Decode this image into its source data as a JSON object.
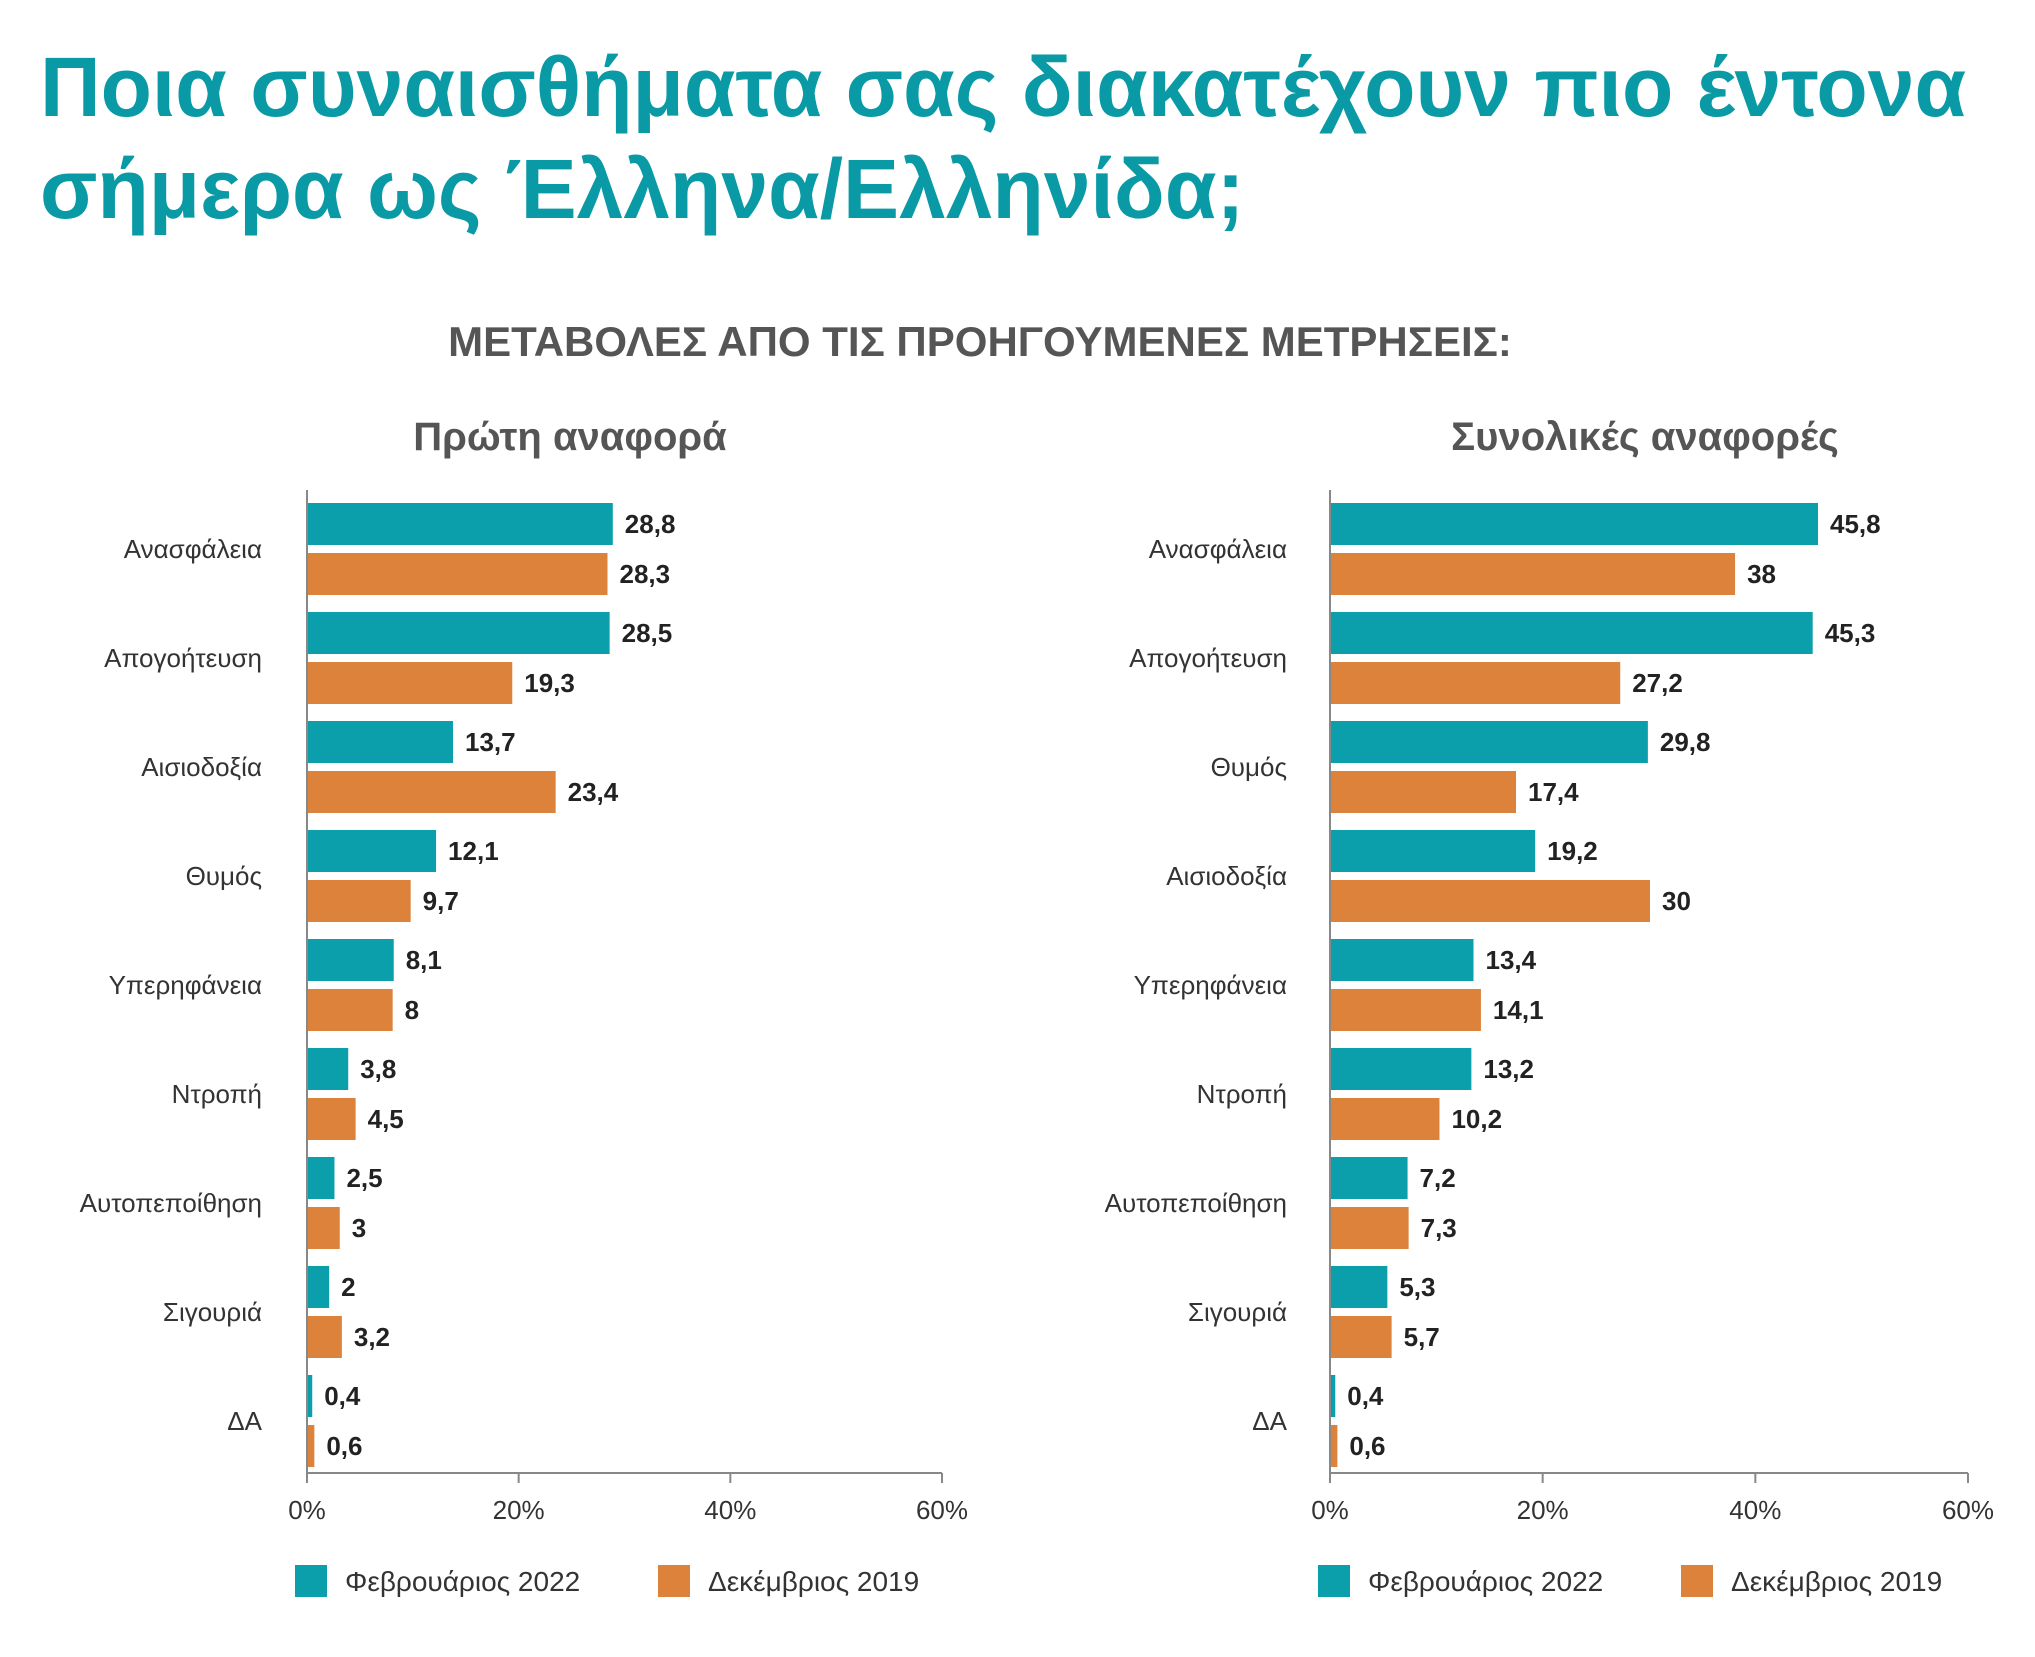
{
  "header": {
    "title": "Ποια συναισθήματα σας διακατέχουν πιο έντονα σήμερα ως Έλληνα/Ελληνίδα;",
    "subtitle": "ΜΕΤΑΒΟΛΕΣ ΑΠΟ ΤΙΣ ΠΡΟΗΓΟΥΜΕΝΕΣ ΜΕΤΡΗΣΕΙΣ:"
  },
  "colors": {
    "teal": "#0a9fab",
    "orange": "#dc823b",
    "axis": "#888888"
  },
  "chart_data": [
    {
      "type": "bar",
      "orientation": "horizontal",
      "title": "Πρώτη αναφορά",
      "categories": [
        "Ανασφάλεια",
        "Απογοήτευση",
        "Αισιοδοξία",
        "Θυμός",
        "Υπερηφάνεια",
        "Ντροπή",
        "Αυτοπεποίθηση",
        "Σιγουριά",
        "ΔΑ"
      ],
      "series": [
        {
          "name": "Φεβρουάριος 2022",
          "color": "#0a9fab",
          "values": [
            28.8,
            28.5,
            13.7,
            12.1,
            8.1,
            3.8,
            2.5,
            2,
            0.4
          ],
          "labels": [
            "28,8",
            "28,5",
            "13,7",
            "12,1",
            "8,1",
            "3,8",
            "2,5",
            "2",
            "0,4"
          ]
        },
        {
          "name": "Δεκέμβριος 2019",
          "color": "#dc823b",
          "values": [
            28.3,
            19.3,
            23.4,
            9.7,
            8,
            4.5,
            3,
            3.2,
            0.6
          ],
          "labels": [
            "28,3",
            "19,3",
            "23,4",
            "9,7",
            "8",
            "4,5",
            "3",
            "3,2",
            "0,6"
          ]
        }
      ],
      "xlim": [
        0,
        60
      ],
      "ticks": [
        "0%",
        "20%",
        "40%",
        "60%"
      ],
      "legend": "bottom",
      "grid": false
    },
    {
      "type": "bar",
      "orientation": "horizontal",
      "title": "Συνολικές αναφορές",
      "categories": [
        "Ανασφάλεια",
        "Απογοήτευση",
        "Θυμός",
        "Αισιοδοξία",
        "Υπερηφάνεια",
        "Ντροπή",
        "Αυτοπεποίθηση",
        "Σιγουριά",
        "ΔΑ"
      ],
      "series": [
        {
          "name": "Φεβρουάριος 2022",
          "color": "#0a9fab",
          "values": [
            45.8,
            45.3,
            29.8,
            19.2,
            13.4,
            13.2,
            7.2,
            5.3,
            0.4
          ],
          "labels": [
            "45,8",
            "45,3",
            "29,8",
            "19,2",
            "13,4",
            "13,2",
            "7,2",
            "5,3",
            "0,4"
          ]
        },
        {
          "name": "Δεκέμβριος 2019",
          "color": "#dc823b",
          "values": [
            38,
            27.2,
            17.4,
            30,
            14.1,
            10.2,
            7.3,
            5.7,
            0.6
          ],
          "labels": [
            "38",
            "27,2",
            "17,4",
            "30",
            "14,1",
            "10,2",
            "7,3",
            "5,7",
            "0,6"
          ]
        }
      ],
      "xlim": [
        0,
        60
      ],
      "ticks": [
        "0%",
        "20%",
        "40%",
        "60%"
      ],
      "legend": "bottom",
      "grid": false
    }
  ]
}
